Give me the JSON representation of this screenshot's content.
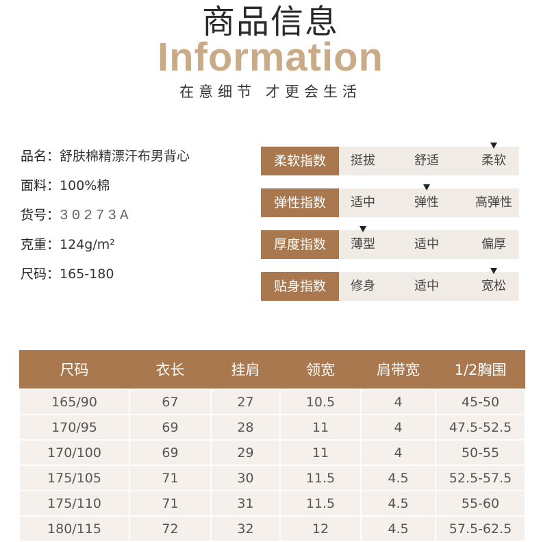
{
  "header": {
    "title_cn": "商品信息",
    "title_en": "Information",
    "subtitle": "在意细节 才更会生活"
  },
  "specs": [
    {
      "label": "品名：",
      "value": "舒肤棉精漂汗布男背心"
    },
    {
      "label": "面料：",
      "value": "100%棉"
    },
    {
      "label": "货号：",
      "value": "30273A"
    },
    {
      "label": "克重：",
      "value": "124g/m²"
    },
    {
      "label": "尺码：",
      "value": "165-180"
    }
  ],
  "indices": [
    {
      "label": "柔软指数",
      "options": [
        "挺拔",
        "舒适",
        "柔软"
      ],
      "selected_index": 2
    },
    {
      "label": "弹性指数",
      "options": [
        "适中",
        "弹性",
        "高弹性"
      ],
      "selected_index": 1
    },
    {
      "label": "厚度指数",
      "options": [
        "薄型",
        "适中",
        "偏厚"
      ],
      "selected_index": 0
    },
    {
      "label": "贴身指数",
      "options": [
        "修身",
        "适中",
        "宽松"
      ],
      "selected_index": 2
    }
  ],
  "size_table": {
    "headers": [
      "尺码",
      "衣长",
      "挂肩",
      "领宽",
      "肩带宽",
      "1/2胸围"
    ],
    "rows": [
      [
        "165/90",
        "67",
        "27",
        "10.5",
        "4",
        "45-50"
      ],
      [
        "170/95",
        "69",
        "28",
        "11",
        "4",
        "47.5-52.5"
      ],
      [
        "170/100",
        "69",
        "29",
        "11",
        "4",
        "50-55"
      ],
      [
        "175/105",
        "71",
        "30",
        "11.5",
        "4.5",
        "52.5-57.5"
      ],
      [
        "175/110",
        "71",
        "31",
        "11.5",
        "4.5",
        "55-60"
      ],
      [
        "180/115",
        "72",
        "32",
        "12",
        "4.5",
        "57.5-62.5"
      ]
    ]
  },
  "colors": {
    "accent": "#a9784f",
    "title_en": "#c9ab88",
    "meter_bg": "#f1ebe5",
    "table_cell_bg": "#f6f0ec"
  }
}
